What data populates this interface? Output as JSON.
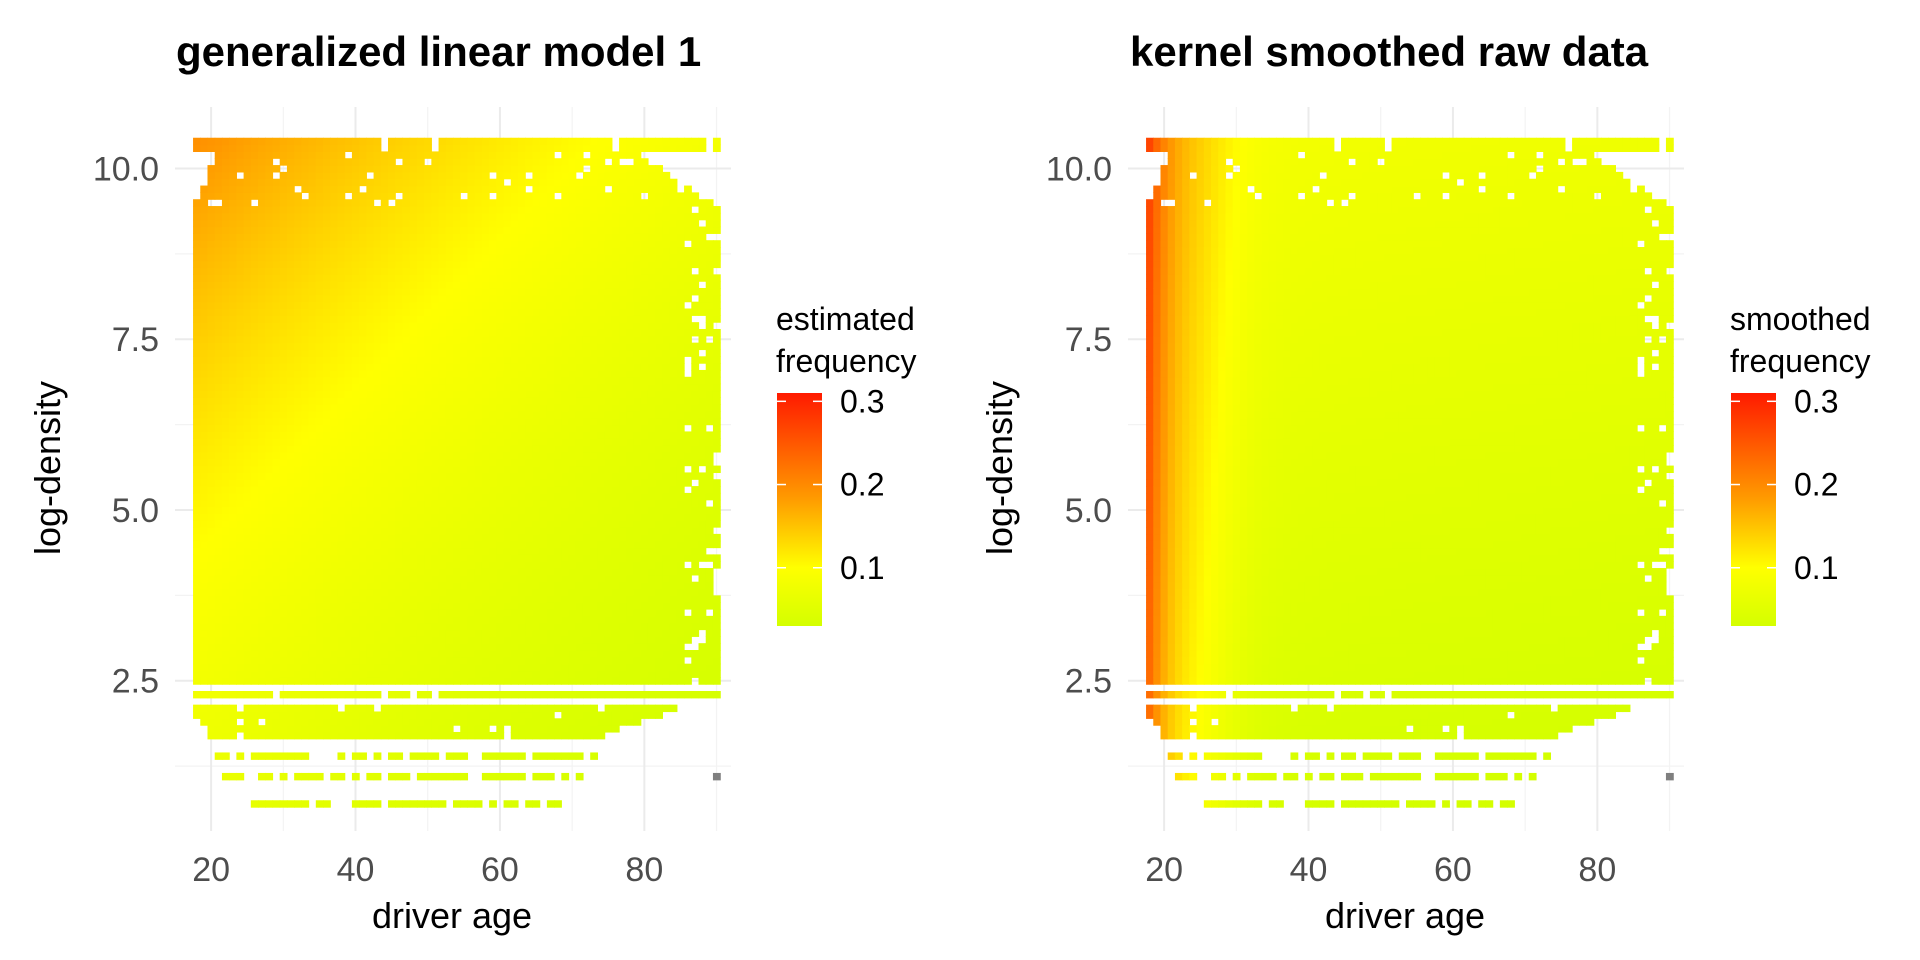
{
  "colors": {
    "low": "#d4ff00",
    "mid": "#ffff00",
    "high": "#ff1a00",
    "grid": "#ebebeb",
    "na": "#7f7f7f"
  },
  "chart_data": [
    {
      "type": "heatmap",
      "title": "generalized linear model 1",
      "xlabel": "driver age",
      "ylabel": "log-density",
      "xlim": [
        15,
        92
      ],
      "ylim": [
        0.3,
        10.9
      ],
      "x_ticks": [
        20,
        40,
        60,
        80
      ],
      "x_tick_labels": [
        "20",
        "40",
        "60",
        "80"
      ],
      "y_ticks": [
        2.5,
        5.0,
        7.5,
        10.0
      ],
      "y_tick_labels": [
        "2.5",
        "5.0",
        "7.5",
        "10.0"
      ],
      "x_range": [
        18,
        90
      ],
      "y_range": [
        0.7,
        10.4
      ],
      "legend_title": [
        "estimated",
        "frequency"
      ],
      "legend_breaks": [
        0.1,
        0.2,
        0.3
      ],
      "legend_labels": [
        "0.1",
        "0.2",
        "0.3"
      ],
      "legend_range": [
        0.03,
        0.31
      ],
      "legend_position": "right",
      "model": "glm",
      "sample_values": [
        {
          "age": 20,
          "logdensity": 10.0,
          "frequency": 0.16
        },
        {
          "age": 20,
          "logdensity": 2.5,
          "frequency": 0.09
        },
        {
          "age": 60,
          "logdensity": 7.5,
          "frequency": 0.08
        },
        {
          "age": 88,
          "logdensity": 2.5,
          "frequency": 0.05
        }
      ]
    },
    {
      "type": "heatmap",
      "title": "kernel smoothed raw data",
      "xlabel": "driver age",
      "ylabel": "log-density",
      "xlim": [
        15,
        92
      ],
      "ylim": [
        0.3,
        10.9
      ],
      "x_ticks": [
        20,
        40,
        60,
        80
      ],
      "x_tick_labels": [
        "20",
        "40",
        "60",
        "80"
      ],
      "y_ticks": [
        2.5,
        5.0,
        7.5,
        10.0
      ],
      "y_tick_labels": [
        "2.5",
        "5.0",
        "7.5",
        "10.0"
      ],
      "x_range": [
        18,
        90
      ],
      "y_range": [
        0.7,
        10.4
      ],
      "legend_title": [
        "smoothed",
        "frequency"
      ],
      "legend_breaks": [
        0.1,
        0.2,
        0.3
      ],
      "legend_labels": [
        "0.1",
        "0.2",
        "0.3"
      ],
      "legend_range": [
        0.03,
        0.31
      ],
      "legend_position": "right",
      "model": "kernel",
      "sample_values": [
        {
          "age": 18,
          "logdensity": 8.0,
          "frequency": 0.26
        },
        {
          "age": 20,
          "logdensity": 5.0,
          "frequency": 0.2
        },
        {
          "age": 40,
          "logdensity": 5.0,
          "frequency": 0.08
        },
        {
          "age": 80,
          "logdensity": 2.5,
          "frequency": 0.06
        }
      ]
    }
  ]
}
